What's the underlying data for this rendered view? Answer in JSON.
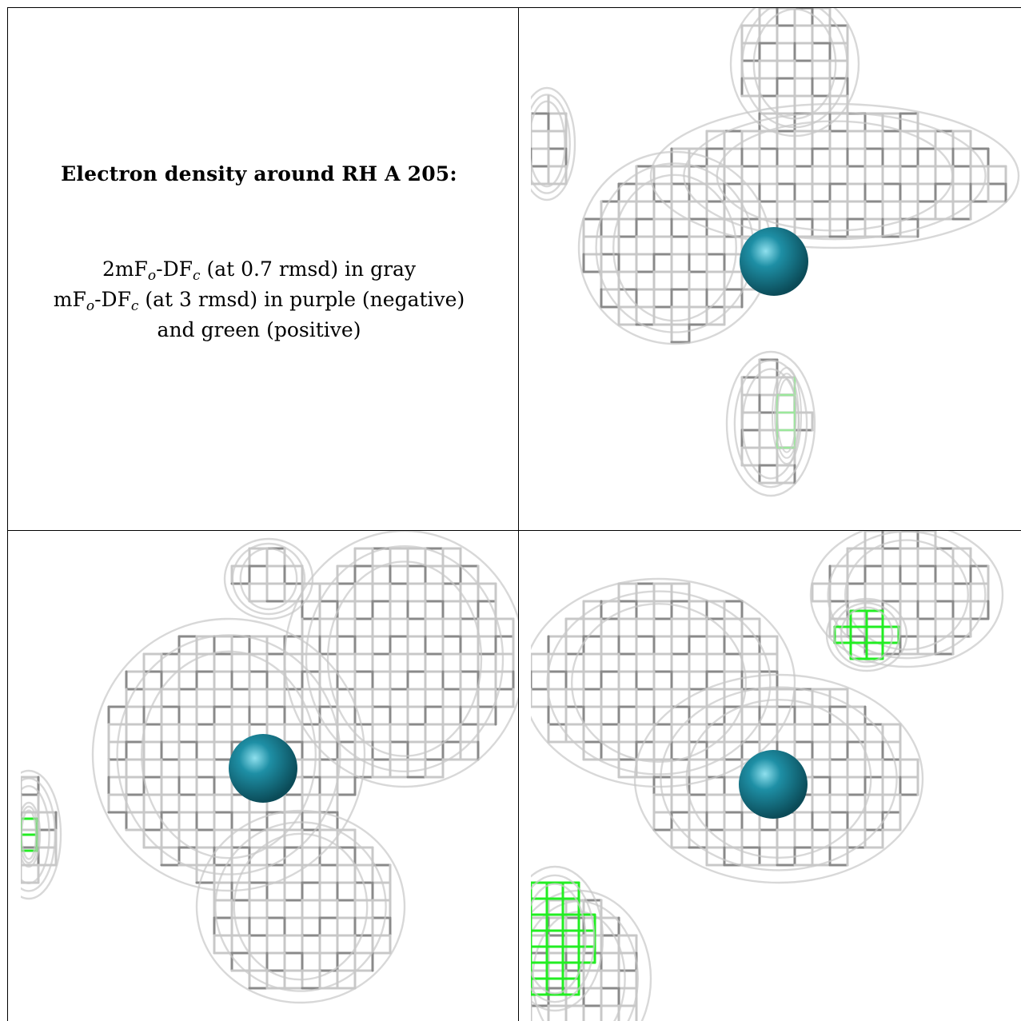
{
  "caption": {
    "title": "Electron density around RH A 205:",
    "line1_prefix": "2mF",
    "line1_sub1": "o",
    "line1_mid": "-DF",
    "line1_sub2": "c",
    "line1_suffix": " (at 0.7 rmsd) in gray",
    "line2_prefix": "mF",
    "line2_sub1": "o",
    "line2_mid": "-DF",
    "line2_sub2": "c",
    "line2_suffix": " (at 3 rmsd) in purple (negative)",
    "line3": "and green (positive)"
  },
  "colors": {
    "mesh_gray": "#8a8a8a",
    "mesh_light": "#c8c8c8",
    "mesh_green": "#22ee22",
    "atom": "#1e8fa5",
    "border": "#000000"
  },
  "icons": {
    "atom": "teal-sphere-atom",
    "mesh": "wireframe-density-mesh"
  }
}
